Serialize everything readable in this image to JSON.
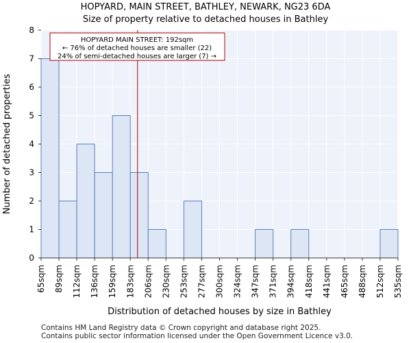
{
  "chart_data": {
    "type": "bar",
    "title": "HOPYARD, MAIN STREET, BATHLEY, NEWARK, NG23 6DA",
    "subtitle": "Size of property relative to detached houses in Bathley",
    "xlabel": "Distribution of detached houses by size in Bathley",
    "ylabel": "Number of detached properties",
    "bin_edges": [
      "65sqm",
      "89sqm",
      "112sqm",
      "136sqm",
      "159sqm",
      "183sqm",
      "206sqm",
      "230sqm",
      "253sqm",
      "277sqm",
      "300sqm",
      "324sqm",
      "347sqm",
      "371sqm",
      "394sqm",
      "418sqm",
      "441sqm",
      "465sqm",
      "488sqm",
      "512sqm",
      "535sqm"
    ],
    "values": [
      7,
      2,
      4,
      3,
      5,
      3,
      1,
      0,
      2,
      0,
      0,
      0,
      1,
      0,
      1,
      0,
      0,
      0,
      0,
      1
    ],
    "ylim": [
      0,
      8
    ],
    "yticks": [
      "0",
      "1",
      "2",
      "3",
      "4",
      "5",
      "6",
      "7",
      "8"
    ],
    "marker": {
      "value_sqm": 192,
      "lines": [
        "HOPYARD MAIN STREET: 192sqm",
        "← 76% of detached houses are smaller (22)",
        "24% of semi-detached houses are larger (7) →"
      ]
    },
    "colors": {
      "bar_fill": "#dce6f5",
      "bar_stroke": "#5a7fbf",
      "marker": "#aa0000",
      "plot_bg": "#eef2fa"
    }
  },
  "footer": {
    "line1": "Contains HM Land Registry data © Crown copyright and database right 2025.",
    "line2": "Contains public sector information licensed under the Open Government Licence v3.0."
  }
}
